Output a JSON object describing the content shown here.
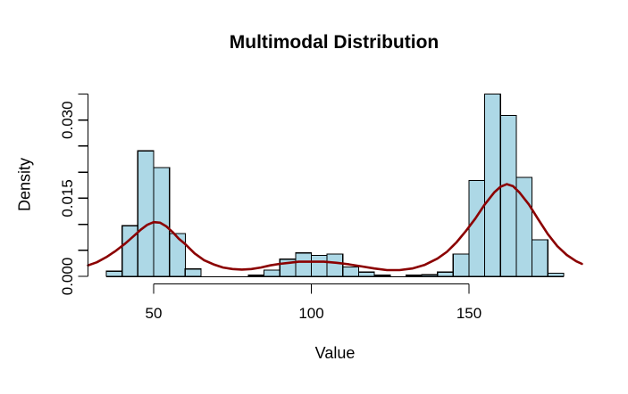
{
  "chart_data": {
    "type": "bar",
    "subtype": "histogram-with-density-overlay",
    "title": "Multimodal Distribution",
    "xlabel": "Value",
    "ylabel": "Density",
    "background": "#ffffff",
    "bar_fill": "#ADD8E6",
    "bar_border": "#000000",
    "curve_color": "#8B0000",
    "axis_color": "#000000",
    "xlim": [
      29.2,
      185.8
    ],
    "ylim": [
      0,
      0.0364
    ],
    "grid": "off",
    "legend": "none",
    "x_ticks": [
      50,
      100,
      150
    ],
    "x_tick_labels": [
      "50",
      "100",
      "150"
    ],
    "y_ticks": [
      0,
      0.005,
      0.01,
      0.015,
      0.02,
      0.025,
      0.03,
      0.035
    ],
    "y_tick_labels": [
      "0.000",
      "",
      "",
      "0.015",
      "",
      "",
      "0.030",
      ""
    ],
    "bins": {
      "start": 35,
      "width": 5,
      "densities": [
        0.001,
        0.0097,
        0.0241,
        0.0209,
        0.0082,
        0.0014,
        0,
        0,
        0,
        0.0002,
        0.0012,
        0.0033,
        0.0045,
        0.004,
        0.0043,
        0.0018,
        0.0008,
        0.0002,
        0,
        0.0002,
        0.0003,
        0.0008,
        0.0043,
        0.0184,
        0.035,
        0.0309,
        0.019,
        0.007,
        0.0006
      ]
    },
    "density_curve": [
      [
        29.2,
        0.0021
      ],
      [
        32,
        0.0027
      ],
      [
        35,
        0.0037
      ],
      [
        38,
        0.0049
      ],
      [
        41,
        0.0063
      ],
      [
        44,
        0.0079
      ],
      [
        46,
        0.009
      ],
      [
        48,
        0.0099
      ],
      [
        50,
        0.0104
      ],
      [
        52,
        0.0103
      ],
      [
        54,
        0.0096
      ],
      [
        56,
        0.0085
      ],
      [
        58,
        0.0072
      ],
      [
        60,
        0.0062
      ],
      [
        63,
        0.0044
      ],
      [
        66,
        0.0031
      ],
      [
        69,
        0.0023
      ],
      [
        72,
        0.0017
      ],
      [
        75,
        0.0014
      ],
      [
        78,
        0.0013
      ],
      [
        81,
        0.0014
      ],
      [
        84,
        0.0017
      ],
      [
        87,
        0.0021
      ],
      [
        90,
        0.0024
      ],
      [
        93,
        0.0026
      ],
      [
        96,
        0.0028
      ],
      [
        100,
        0.0028
      ],
      [
        104,
        0.0028
      ],
      [
        108,
        0.0026
      ],
      [
        112,
        0.0023
      ],
      [
        116,
        0.0019
      ],
      [
        120,
        0.0015
      ],
      [
        124,
        0.0012
      ],
      [
        128,
        0.0012
      ],
      [
        132,
        0.0015
      ],
      [
        136,
        0.0022
      ],
      [
        140,
        0.0034
      ],
      [
        143,
        0.0047
      ],
      [
        146,
        0.0065
      ],
      [
        149,
        0.0087
      ],
      [
        152,
        0.0111
      ],
      [
        155,
        0.0138
      ],
      [
        158,
        0.0161
      ],
      [
        160,
        0.0172
      ],
      [
        162,
        0.0177
      ],
      [
        164,
        0.0173
      ],
      [
        166,
        0.0161
      ],
      [
        169,
        0.0138
      ],
      [
        172,
        0.0109
      ],
      [
        175,
        0.0081
      ],
      [
        178,
        0.0058
      ],
      [
        181,
        0.0041
      ],
      [
        184,
        0.0029
      ],
      [
        185.8,
        0.0024
      ]
    ]
  }
}
